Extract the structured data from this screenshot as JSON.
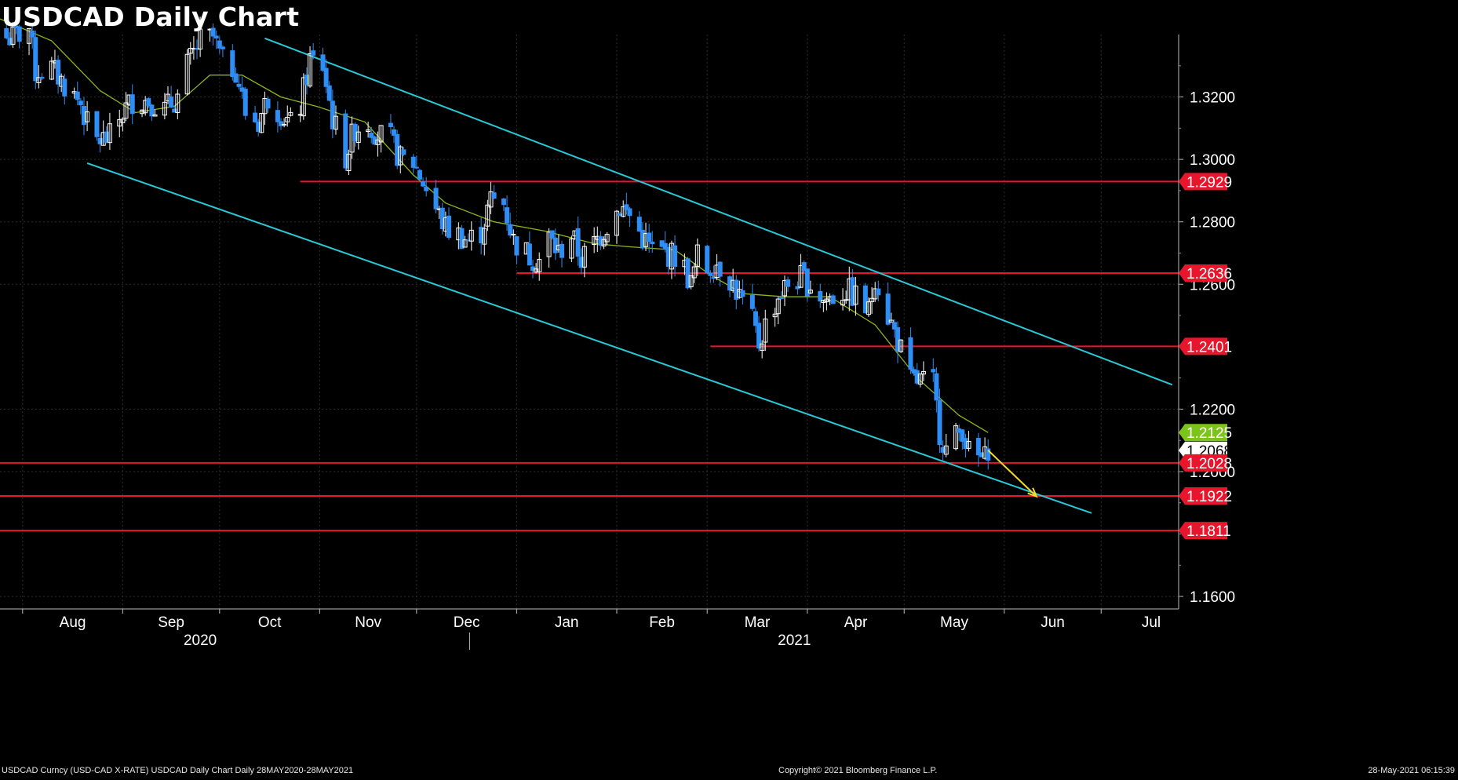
{
  "title": "USDCAD Daily Chart",
  "footer": {
    "left": "USDCAD Curncy (USD-CAD X-RATE) USDCAD Daily Chart  Daily 28MAY2020-28MAY2021",
    "center": "Copyright© 2021 Bloomberg Finance L.P.",
    "right": "28-May-2021 06:15:39"
  },
  "colors": {
    "background": "#000000",
    "up_candle": "#ffffff",
    "down_candle": "#2f8ef5",
    "moving_average": "#8db51a",
    "channel": "#29c9d8",
    "support_resistance": "#e8162c",
    "forecast_arrow": "#f5dd2a",
    "grid": "#2e2e2e"
  },
  "chart_data": {
    "type": "candlestick",
    "title": "USDCAD Daily Chart",
    "y_axis": {
      "position": "right",
      "ticks": [
        "1.3200",
        "1.3000",
        "1.2800",
        "1.2600",
        "1.2200",
        "1.2000",
        "1.1600"
      ],
      "range": [
        1.156,
        1.34
      ]
    },
    "x_axis": {
      "months": [
        "Aug",
        "Sep",
        "Oct",
        "Nov",
        "Dec",
        "Jan",
        "Feb",
        "Mar",
        "Apr",
        "May",
        "Jun",
        "Jul"
      ],
      "years": [
        "2020",
        "2021"
      ],
      "range": [
        "2020-07-25",
        "2021-07-25"
      ]
    },
    "price_labels": [
      {
        "value": "1.2929",
        "level": 1.2929,
        "kind": "level"
      },
      {
        "value": "1.2636",
        "level": 1.2636,
        "kind": "level"
      },
      {
        "value": "1.2401",
        "level": 1.2401,
        "kind": "level"
      },
      {
        "value": "1.2125",
        "level": 1.2125,
        "kind": "moving_average"
      },
      {
        "value": "1.2068",
        "level": 1.2068,
        "kind": "last_price"
      },
      {
        "value": "1.2028",
        "level": 1.2028,
        "kind": "level"
      },
      {
        "value": "1.1922",
        "level": 1.1922,
        "kind": "level"
      },
      {
        "value": "1.1811",
        "level": 1.1811,
        "kind": "level"
      }
    ],
    "horizontal_levels": [
      {
        "value": 1.2929,
        "from": "2020-10-26"
      },
      {
        "value": 1.2636,
        "from": "2021-01-01"
      },
      {
        "value": 1.2401,
        "from": "2021-03-02"
      },
      {
        "value": 1.2028,
        "from": "2020-07-25"
      },
      {
        "value": 1.1922,
        "from": "2020-07-25"
      },
      {
        "value": 1.1811,
        "from": "2020-07-25"
      }
    ],
    "channel": {
      "upper": [
        [
          "2020-10-15",
          1.3388
        ],
        [
          "2021-07-23",
          1.2278
        ]
      ],
      "lower": [
        [
          "2020-08-21",
          1.2988
        ],
        [
          "2021-06-28",
          1.1867
        ]
      ]
    },
    "forecast_arrow": [
      [
        "2021-05-27",
        1.2068
      ],
      [
        "2021-06-11",
        1.192
      ]
    ],
    "moving_average_20d": [
      [
        "2020-07-25",
        1.345
      ],
      [
        "2020-08-10",
        1.338
      ],
      [
        "2020-08-25",
        1.322
      ],
      [
        "2020-09-05",
        1.315
      ],
      [
        "2020-09-17",
        1.317
      ],
      [
        "2020-09-28",
        1.327
      ],
      [
        "2020-10-08",
        1.327
      ],
      [
        "2020-10-20",
        1.32
      ],
      [
        "2020-10-31",
        1.317
      ],
      [
        "2020-11-15",
        1.312
      ],
      [
        "2020-11-30",
        1.295
      ],
      [
        "2020-12-10",
        1.286
      ],
      [
        "2020-12-25",
        1.28
      ],
      [
        "2021-01-10",
        1.277
      ],
      [
        "2021-01-25",
        1.273
      ],
      [
        "2021-02-05",
        1.272
      ],
      [
        "2021-02-19",
        1.271
      ],
      [
        "2021-03-02",
        1.263
      ],
      [
        "2021-03-12",
        1.257
      ],
      [
        "2021-03-25",
        1.256
      ],
      [
        "2021-04-08",
        1.256
      ],
      [
        "2021-04-22",
        1.247
      ],
      [
        "2021-05-05",
        1.23
      ],
      [
        "2021-05-18",
        1.218
      ],
      [
        "2021-05-27",
        1.2125
      ]
    ],
    "price_path": [
      [
        "2020-07-25",
        1.339
      ],
      [
        "2020-07-29",
        1.339
      ],
      [
        "2020-08-03",
        1.342
      ],
      [
        "2020-08-05",
        1.328
      ],
      [
        "2020-08-10",
        1.329
      ],
      [
        "2020-08-14",
        1.324
      ],
      [
        "2020-08-19",
        1.318
      ],
      [
        "2020-08-21",
        1.311
      ],
      [
        "2020-08-24",
        1.306
      ],
      [
        "2020-08-28",
        1.307
      ],
      [
        "2020-09-01",
        1.315
      ],
      [
        "2020-09-04",
        1.319
      ],
      [
        "2020-09-09",
        1.319
      ],
      [
        "2020-09-14",
        1.316
      ],
      [
        "2020-09-18",
        1.32
      ],
      [
        "2020-09-21",
        1.33
      ],
      [
        "2020-09-25",
        1.338
      ],
      [
        "2020-09-29",
        1.339
      ],
      [
        "2020-10-02",
        1.331
      ],
      [
        "2020-10-06",
        1.329
      ],
      [
        "2020-10-09",
        1.315
      ],
      [
        "2020-10-13",
        1.312
      ],
      [
        "2020-10-16",
        1.32
      ],
      [
        "2020-10-20",
        1.315
      ],
      [
        "2020-10-23",
        1.311
      ],
      [
        "2020-10-26",
        1.317
      ],
      [
        "2020-10-29",
        1.332
      ],
      [
        "2020-11-02",
        1.33
      ],
      [
        "2020-11-05",
        1.313
      ],
      [
        "2020-11-09",
        1.301
      ],
      [
        "2020-11-12",
        1.31
      ],
      [
        "2020-11-16",
        1.312
      ],
      [
        "2020-11-19",
        1.308
      ],
      [
        "2020-11-23",
        1.306
      ],
      [
        "2020-11-26",
        1.3
      ],
      [
        "2020-11-30",
        1.299
      ],
      [
        "2020-12-03",
        1.293
      ],
      [
        "2020-12-07",
        1.284
      ],
      [
        "2020-12-10",
        1.278
      ],
      [
        "2020-12-14",
        1.276
      ],
      [
        "2020-12-17",
        1.274
      ],
      [
        "2020-12-21",
        1.277
      ],
      [
        "2020-12-24",
        1.287
      ],
      [
        "2020-12-28",
        1.286
      ],
      [
        "2020-12-31",
        1.274
      ],
      [
        "2021-01-05",
        1.269
      ],
      [
        "2021-01-08",
        1.268
      ],
      [
        "2021-01-11",
        1.275
      ],
      [
        "2021-01-14",
        1.27
      ],
      [
        "2021-01-18",
        1.276
      ],
      [
        "2021-01-21",
        1.268
      ],
      [
        "2021-01-25",
        1.273
      ],
      [
        "2021-01-29",
        1.279
      ],
      [
        "2021-02-02",
        1.285
      ],
      [
        "2021-02-05",
        1.282
      ],
      [
        "2021-02-09",
        1.275
      ],
      [
        "2021-02-12",
        1.271
      ],
      [
        "2021-02-16",
        1.27
      ],
      [
        "2021-02-19",
        1.269
      ],
      [
        "2021-02-22",
        1.265
      ],
      [
        "2021-02-24",
        1.26
      ],
      [
        "2021-02-26",
        1.269
      ],
      [
        "2021-03-01",
        1.265
      ],
      [
        "2021-03-04",
        1.267
      ],
      [
        "2021-03-08",
        1.262
      ],
      [
        "2021-03-11",
        1.256
      ],
      [
        "2021-03-15",
        1.248
      ],
      [
        "2021-03-17",
        1.241
      ],
      [
        "2021-03-19",
        1.247
      ],
      [
        "2021-03-23",
        1.256
      ],
      [
        "2021-03-26",
        1.26
      ],
      [
        "2021-03-30",
        1.262
      ],
      [
        "2021-04-02",
        1.26
      ],
      [
        "2021-04-06",
        1.255
      ],
      [
        "2021-04-09",
        1.256
      ],
      [
        "2021-04-13",
        1.258
      ],
      [
        "2021-04-16",
        1.256
      ],
      [
        "2021-04-20",
        1.251
      ],
      [
        "2021-04-22",
        1.263
      ],
      [
        "2021-04-26",
        1.25
      ],
      [
        "2021-04-29",
        1.242
      ],
      [
        "2021-05-03",
        1.229
      ],
      [
        "2021-05-06",
        1.229
      ],
      [
        "2021-05-10",
        1.228
      ],
      [
        "2021-05-12",
        1.213
      ],
      [
        "2021-05-14",
        1.207
      ],
      [
        "2021-05-17",
        1.211
      ],
      [
        "2021-05-19",
        1.214
      ],
      [
        "2021-05-21",
        1.206
      ],
      [
        "2021-05-25",
        1.204
      ],
      [
        "2021-05-26",
        1.204
      ],
      [
        "2021-05-27",
        1.208
      ]
    ]
  }
}
